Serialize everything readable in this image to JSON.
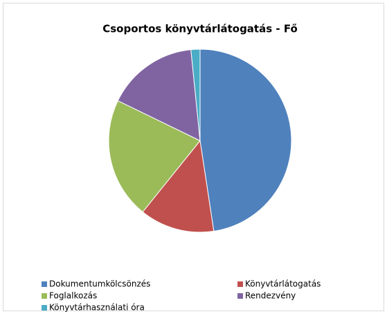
{
  "chart_data": {
    "type": "pie",
    "title": "Csoportos könyvtárlátogatás - Fő",
    "categories": [
      "Dokumentumkölcsönzés",
      "Könyvtárlátogatás",
      "Foglalkozás",
      "Rendezvény",
      "Könyvtárhasználati  óra"
    ],
    "values": [
      47.6,
      13.2,
      21.4,
      16.2,
      1.6
    ],
    "colors": [
      "#4f81bd",
      "#c0504d",
      "#9bbb59",
      "#8064a2",
      "#4bacc6"
    ],
    "legend": "bottom"
  }
}
